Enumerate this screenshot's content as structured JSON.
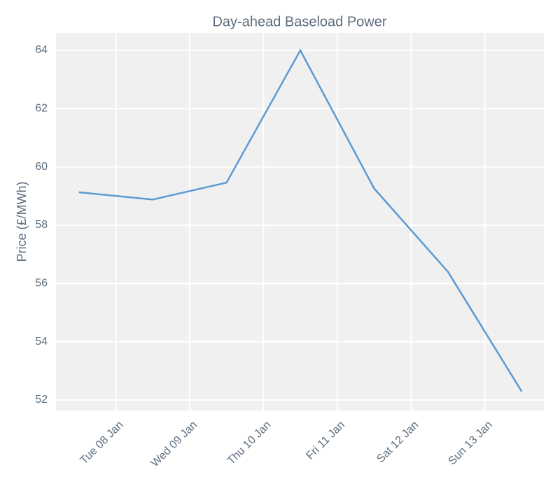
{
  "chart_data": {
    "type": "line",
    "title": "Day-ahead Baseload Power",
    "y_label": "Price (£/MWh)",
    "x": [
      7.5,
      8.5,
      9.5,
      10.5,
      11.5,
      12.5,
      13.5
    ],
    "series": [
      {
        "color": "#5b9bd5",
        "values": [
          59.13,
          58.88,
          59.46,
          64.0,
          59.26,
          56.4,
          52.29
        ]
      }
    ],
    "xlim": [
      7.19,
      13.8
    ],
    "xticks": [
      {
        "value": 8,
        "label": "Tue 08 Jan"
      },
      {
        "value": 9,
        "label": "Wed 09 Jan"
      },
      {
        "value": 10,
        "label": "Thu 10 Jan"
      },
      {
        "value": 11,
        "label": "Fri 11 Jan"
      },
      {
        "value": 12,
        "label": "Sat 12 Jan"
      },
      {
        "value": 13,
        "label": "Sun 13 Jan"
      }
    ],
    "ylim": [
      51.64,
      64.6
    ],
    "yticks": [
      52,
      54,
      56,
      58,
      60,
      62,
      64
    ],
    "grid": true
  }
}
